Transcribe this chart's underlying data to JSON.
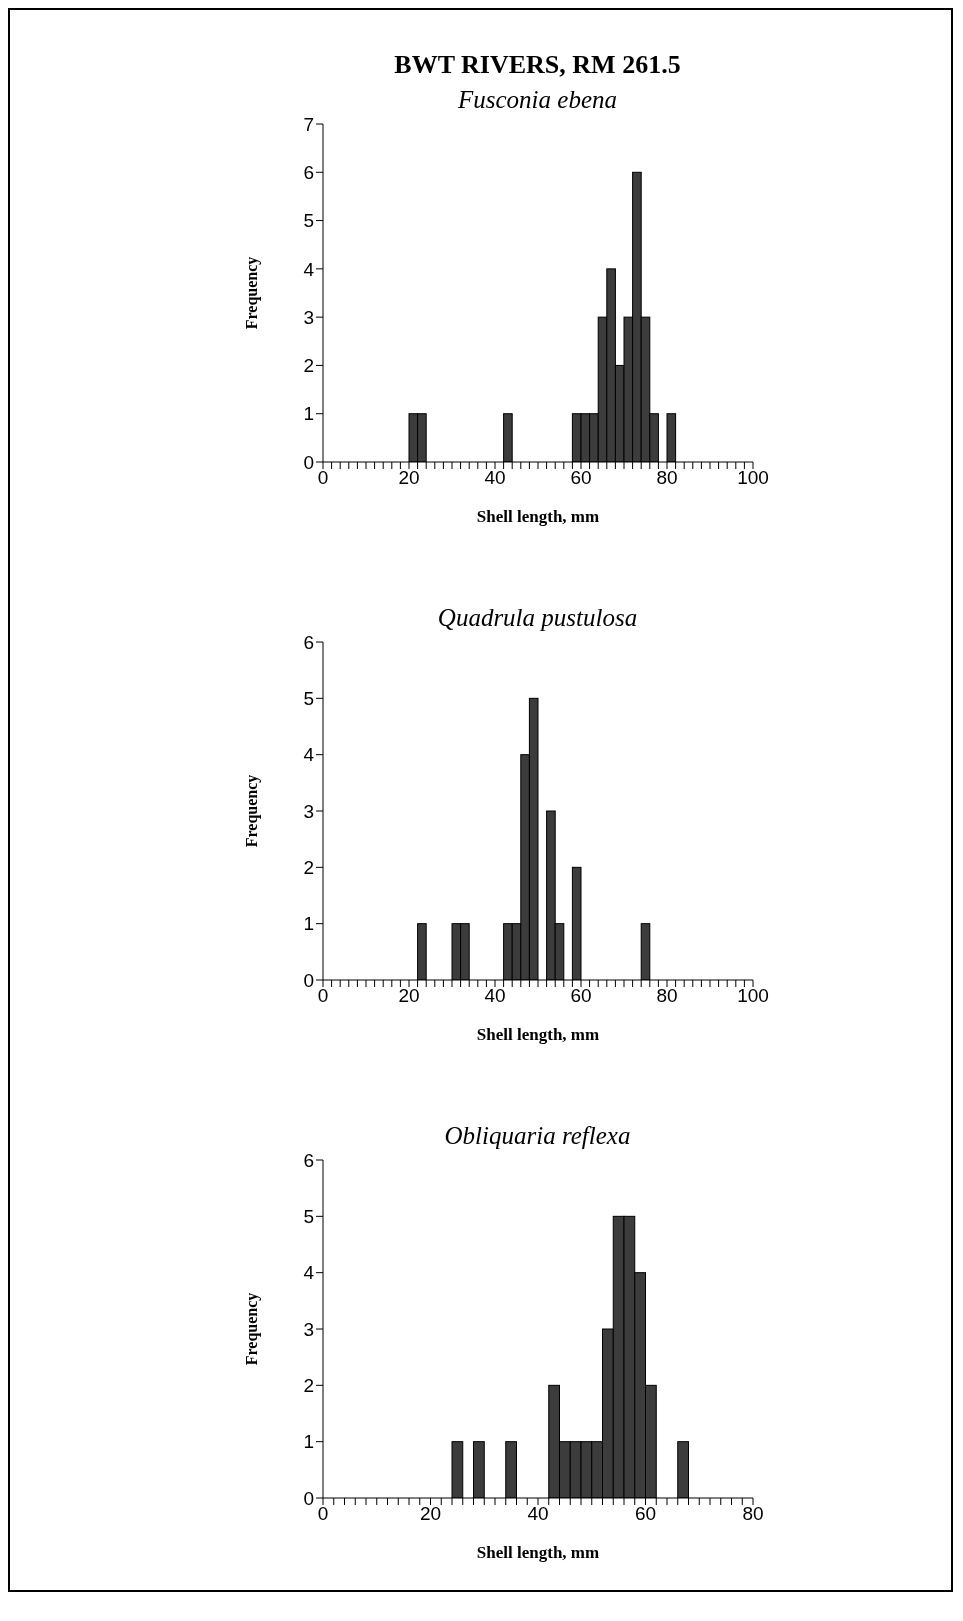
{
  "chart_data": [
    {
      "type": "histogram",
      "title": "BWT RIVERS, RM 261.5",
      "subtitle": "Fusconia ebena",
      "xlabel": "Shell length, mm",
      "ylabel": "Frequency",
      "color": "#3c3c3c",
      "grid": false,
      "bins": [
        0,
        2,
        4,
        6,
        8,
        10,
        12,
        14,
        16,
        18,
        20,
        22,
        24,
        26,
        28,
        30,
        32,
        34,
        36,
        38,
        40,
        42,
        44,
        46,
        48,
        50,
        52,
        54,
        56,
        58,
        60,
        62,
        64,
        66,
        68,
        70,
        72,
        74,
        76,
        78,
        80,
        82,
        84,
        86,
        88,
        90,
        92,
        94,
        96,
        98,
        100
      ],
      "values": [
        0,
        0,
        0,
        0,
        0,
        0,
        0,
        0,
        0,
        0,
        1,
        1,
        0,
        0,
        0,
        0,
        0,
        0,
        0,
        0,
        0,
        1,
        0,
        0,
        0,
        0,
        0,
        0,
        0,
        1,
        1,
        1,
        3,
        4,
        2,
        3,
        6,
        3,
        1,
        0,
        1,
        0,
        0,
        0,
        0,
        0,
        0,
        0,
        0,
        0
      ],
      "xlim": [
        0,
        100
      ],
      "ylim": [
        0,
        7
      ],
      "yticks": [
        0,
        1,
        2,
        3,
        4,
        5,
        6,
        7
      ],
      "xticks": [
        0,
        {
          "value": 2,
          "label": null
        },
        {
          "value": 4,
          "label": null
        },
        {
          "value": 6,
          "label": null
        },
        {
          "value": 8,
          "label": null
        },
        {
          "value": 10,
          "label": null
        },
        {
          "value": 12,
          "label": null
        },
        {
          "value": 14,
          "label": null
        },
        {
          "value": 16,
          "label": null
        },
        {
          "value": 18,
          "label": null
        },
        20,
        {
          "value": 22,
          "label": null
        },
        {
          "value": 24,
          "label": null
        },
        {
          "value": 26,
          "label": null
        },
        {
          "value": 28,
          "label": null
        },
        {
          "value": 30,
          "label": null
        },
        {
          "value": 32,
          "label": null
        },
        {
          "value": 34,
          "label": null
        },
        {
          "value": 36,
          "label": null
        },
        {
          "value": 38,
          "label": null
        },
        40,
        {
          "value": 42,
          "label": null
        },
        {
          "value": 44,
          "label": null
        },
        {
          "value": 46,
          "label": null
        },
        {
          "value": 48,
          "label": null
        },
        {
          "value": 50,
          "label": null
        },
        {
          "value": 52,
          "label": null
        },
        {
          "value": 54,
          "label": null
        },
        {
          "value": 56,
          "label": null
        },
        {
          "value": 58,
          "label": null
        },
        60,
        {
          "value": 62,
          "label": null
        },
        {
          "value": 64,
          "label": null
        },
        {
          "value": 66,
          "label": null
        },
        {
          "value": 68,
          "label": null
        },
        {
          "value": 70,
          "label": null
        },
        {
          "value": 72,
          "label": null
        },
        {
          "value": 74,
          "label": null
        },
        {
          "value": 76,
          "label": null
        },
        {
          "value": 78,
          "label": null
        },
        80,
        {
          "value": 82,
          "label": null
        },
        {
          "value": 84,
          "label": null
        },
        {
          "value": 86,
          "label": null
        },
        {
          "value": 88,
          "label": null
        },
        {
          "value": 90,
          "label": null
        },
        {
          "value": 92,
          "label": null
        },
        {
          "value": 94,
          "label": null
        },
        {
          "value": 96,
          "label": null
        },
        {
          "value": 98,
          "label": null
        },
        100
      ]
    },
    {
      "type": "histogram",
      "title": "Quadrula pustulosa",
      "xlabel": "Shell length, mm",
      "ylabel": "Frequency",
      "color": "#3c3c3c",
      "grid": false,
      "bins": [
        0,
        2,
        4,
        6,
        8,
        10,
        12,
        14,
        16,
        18,
        20,
        22,
        24,
        26,
        28,
        30,
        32,
        34,
        36,
        38,
        40,
        42,
        44,
        46,
        48,
        50,
        52,
        54,
        56,
        58,
        60,
        62,
        64,
        66,
        68,
        70,
        72,
        74,
        76,
        78,
        80,
        82,
        84,
        86,
        88,
        90,
        92,
        94,
        96,
        98,
        100
      ],
      "values": [
        0,
        0,
        0,
        0,
        0,
        0,
        0,
        0,
        0,
        0,
        0,
        1,
        0,
        0,
        0,
        1,
        1,
        0,
        0,
        0,
        0,
        1,
        1,
        4,
        5,
        0,
        3,
        1,
        0,
        2,
        0,
        0,
        0,
        0,
        0,
        0,
        0,
        1,
        0,
        0,
        0,
        0,
        0,
        0,
        0,
        0,
        0,
        0,
        0,
        0
      ],
      "xlim": [
        0,
        100
      ],
      "ylim": [
        0,
        6
      ],
      "yticks": [
        0,
        1,
        2,
        3,
        4,
        5,
        6
      ],
      "xticks": [
        0,
        {
          "value": 2,
          "label": null
        },
        {
          "value": 4,
          "label": null
        },
        {
          "value": 6,
          "label": null
        },
        {
          "value": 8,
          "label": null
        },
        {
          "value": 10,
          "label": null
        },
        {
          "value": 12,
          "label": null
        },
        {
          "value": 14,
          "label": null
        },
        {
          "value": 16,
          "label": null
        },
        {
          "value": 18,
          "label": null
        },
        20,
        {
          "value": 22,
          "label": null
        },
        {
          "value": 24,
          "label": null
        },
        {
          "value": 26,
          "label": null
        },
        {
          "value": 28,
          "label": null
        },
        {
          "value": 30,
          "label": null
        },
        {
          "value": 32,
          "label": null
        },
        {
          "value": 34,
          "label": null
        },
        {
          "value": 36,
          "label": null
        },
        {
          "value": 38,
          "label": null
        },
        40,
        {
          "value": 42,
          "label": null
        },
        {
          "value": 44,
          "label": null
        },
        {
          "value": 46,
          "label": null
        },
        {
          "value": 48,
          "label": null
        },
        {
          "value": 50,
          "label": null
        },
        {
          "value": 52,
          "label": null
        },
        {
          "value": 54,
          "label": null
        },
        {
          "value": 56,
          "label": null
        },
        {
          "value": 58,
          "label": null
        },
        60,
        {
          "value": 62,
          "label": null
        },
        {
          "value": 64,
          "label": null
        },
        {
          "value": 66,
          "label": null
        },
        {
          "value": 68,
          "label": null
        },
        {
          "value": 70,
          "label": null
        },
        {
          "value": 72,
          "label": null
        },
        {
          "value": 74,
          "label": null
        },
        {
          "value": 76,
          "label": null
        },
        {
          "value": 78,
          "label": null
        },
        80,
        {
          "value": 82,
          "label": null
        },
        {
          "value": 84,
          "label": null
        },
        {
          "value": 86,
          "label": null
        },
        {
          "value": 88,
          "label": null
        },
        {
          "value": 90,
          "label": null
        },
        {
          "value": 92,
          "label": null
        },
        {
          "value": 94,
          "label": null
        },
        {
          "value": 96,
          "label": null
        },
        {
          "value": 98,
          "label": null
        },
        100
      ]
    },
    {
      "type": "histogram",
      "title": "Obliquaria reflexa",
      "xlabel": "Shell length, mm",
      "ylabel": "Frequency",
      "color": "#3c3c3c",
      "grid": false,
      "bins": [
        0,
        2,
        4,
        6,
        8,
        10,
        12,
        14,
        16,
        18,
        20,
        22,
        24,
        26,
        28,
        30,
        32,
        34,
        36,
        38,
        40,
        42,
        44,
        46,
        48,
        50,
        52,
        54,
        56,
        58,
        60,
        62,
        64,
        66,
        68,
        70,
        72,
        74,
        76,
        78,
        80
      ],
      "values": [
        0,
        0,
        0,
        0,
        0,
        0,
        0,
        0,
        0,
        0,
        0,
        0,
        1,
        0,
        1,
        0,
        0,
        1,
        0,
        0,
        0,
        2,
        1,
        1,
        1,
        1,
        3,
        5,
        5,
        4,
        2,
        0,
        0,
        1,
        0,
        0,
        0,
        0,
        0,
        0
      ],
      "xlim": [
        0,
        80
      ],
      "ylim": [
        0,
        6
      ],
      "yticks": [
        0,
        1,
        2,
        3,
        4,
        5,
        6
      ],
      "xticks": [
        0,
        {
          "value": 2,
          "label": null
        },
        {
          "value": 4,
          "label": null
        },
        {
          "value": 6,
          "label": null
        },
        {
          "value": 8,
          "label": null
        },
        {
          "value": 10,
          "label": null
        },
        {
          "value": 12,
          "label": null
        },
        {
          "value": 14,
          "label": null
        },
        {
          "value": 16,
          "label": null
        },
        {
          "value": 18,
          "label": null
        },
        20,
        {
          "value": 22,
          "label": null
        },
        {
          "value": 24,
          "label": null
        },
        {
          "value": 26,
          "label": null
        },
        {
          "value": 28,
          "label": null
        },
        {
          "value": 30,
          "label": null
        },
        {
          "value": 32,
          "label": null
        },
        {
          "value": 34,
          "label": null
        },
        {
          "value": 36,
          "label": null
        },
        {
          "value": 38,
          "label": null
        },
        40,
        {
          "value": 42,
          "label": null
        },
        {
          "value": 44,
          "label": null
        },
        {
          "value": 46,
          "label": null
        },
        {
          "value": 48,
          "label": null
        },
        {
          "value": 50,
          "label": null
        },
        {
          "value": 52,
          "label": null
        },
        {
          "value": 54,
          "label": null
        },
        {
          "value": 56,
          "label": null
        },
        {
          "value": 58,
          "label": null
        },
        60,
        {
          "value": 62,
          "label": null
        },
        {
          "value": 64,
          "label": null
        },
        {
          "value": 66,
          "label": null
        },
        {
          "value": 68,
          "label": null
        },
        {
          "value": 70,
          "label": null
        },
        {
          "value": 72,
          "label": null
        },
        {
          "value": 74,
          "label": null
        },
        {
          "value": 76,
          "label": null
        },
        {
          "value": 78,
          "label": null
        },
        80
      ]
    }
  ]
}
